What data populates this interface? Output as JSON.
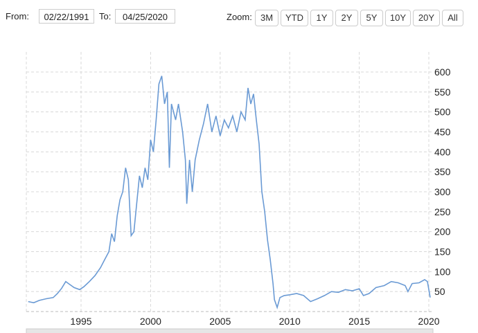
{
  "range": {
    "from_label": "From:",
    "from_value": "02/22/1991",
    "to_label": "To:",
    "to_value": "04/25/2020"
  },
  "zoom": {
    "label": "Zoom:",
    "buttons": [
      "3M",
      "YTD",
      "1Y",
      "2Y",
      "5Y",
      "10Y",
      "20Y",
      "All"
    ]
  },
  "colors": {
    "line": "#6a9ad4",
    "grid": "#d8d8d8"
  },
  "chart_data": {
    "type": "line",
    "title": "",
    "xlabel": "",
    "ylabel": "",
    "xlim": [
      1991.15,
      2020.3
    ],
    "ylim": [
      0,
      620
    ],
    "x_ticks": [
      "1995",
      "2000",
      "2005",
      "2010",
      "2015",
      "2020"
    ],
    "y_ticks": [
      "50",
      "100",
      "150",
      "200",
      "250",
      "300",
      "350",
      "400",
      "450",
      "500",
      "550",
      "600"
    ],
    "grid": true,
    "series": [
      {
        "name": "price",
        "points": [
          [
            1991.2,
            25
          ],
          [
            1991.6,
            22
          ],
          [
            1992,
            28
          ],
          [
            1992.5,
            32
          ],
          [
            1993,
            35
          ],
          [
            1993.3,
            45
          ],
          [
            1993.6,
            58
          ],
          [
            1993.9,
            75
          ],
          [
            1994.1,
            70
          ],
          [
            1994.5,
            60
          ],
          [
            1994.9,
            55
          ],
          [
            1995.2,
            62
          ],
          [
            1995.6,
            75
          ],
          [
            1996,
            90
          ],
          [
            1996.4,
            110
          ],
          [
            1996.7,
            130
          ],
          [
            1997,
            150
          ],
          [
            1997.2,
            195
          ],
          [
            1997.4,
            175
          ],
          [
            1997.6,
            240
          ],
          [
            1997.8,
            280
          ],
          [
            1998,
            300
          ],
          [
            1998.2,
            360
          ],
          [
            1998.4,
            330
          ],
          [
            1998.6,
            190
          ],
          [
            1998.8,
            200
          ],
          [
            1999,
            270
          ],
          [
            1999.2,
            340
          ],
          [
            1999.4,
            310
          ],
          [
            1999.6,
            360
          ],
          [
            1999.8,
            330
          ],
          [
            2000,
            430
          ],
          [
            2000.2,
            400
          ],
          [
            2000.4,
            480
          ],
          [
            2000.6,
            570
          ],
          [
            2000.8,
            590
          ],
          [
            2001,
            520
          ],
          [
            2001.2,
            550
          ],
          [
            2001.35,
            360
          ],
          [
            2001.5,
            520
          ],
          [
            2001.8,
            480
          ],
          [
            2002,
            520
          ],
          [
            2002.3,
            450
          ],
          [
            2002.5,
            380
          ],
          [
            2002.6,
            270
          ],
          [
            2002.8,
            380
          ],
          [
            2003,
            300
          ],
          [
            2003.2,
            380
          ],
          [
            2003.5,
            430
          ],
          [
            2003.8,
            470
          ],
          [
            2004.1,
            520
          ],
          [
            2004.4,
            450
          ],
          [
            2004.7,
            490
          ],
          [
            2005,
            440
          ],
          [
            2005.3,
            480
          ],
          [
            2005.6,
            460
          ],
          [
            2005.9,
            490
          ],
          [
            2006.2,
            450
          ],
          [
            2006.5,
            500
          ],
          [
            2006.8,
            480
          ],
          [
            2007,
            560
          ],
          [
            2007.2,
            520
          ],
          [
            2007.4,
            545
          ],
          [
            2007.6,
            480
          ],
          [
            2007.8,
            420
          ],
          [
            2008,
            300
          ],
          [
            2008.2,
            250
          ],
          [
            2008.4,
            180
          ],
          [
            2008.6,
            130
          ],
          [
            2008.8,
            70
          ],
          [
            2008.9,
            30
          ],
          [
            2009.1,
            10
          ],
          [
            2009.3,
            35
          ],
          [
            2009.6,
            40
          ],
          [
            2010,
            42
          ],
          [
            2010.5,
            45
          ],
          [
            2011,
            40
          ],
          [
            2011.5,
            25
          ],
          [
            2012,
            32
          ],
          [
            2012.5,
            40
          ],
          [
            2013,
            50
          ],
          [
            2013.5,
            48
          ],
          [
            2014,
            55
          ],
          [
            2014.5,
            52
          ],
          [
            2015,
            57
          ],
          [
            2015.3,
            40
          ],
          [
            2015.7,
            45
          ],
          [
            2016.2,
            60
          ],
          [
            2016.8,
            65
          ],
          [
            2017.3,
            75
          ],
          [
            2017.8,
            72
          ],
          [
            2018.3,
            65
          ],
          [
            2018.5,
            50
          ],
          [
            2018.8,
            70
          ],
          [
            2019.3,
            72
          ],
          [
            2019.7,
            80
          ],
          [
            2019.9,
            75
          ],
          [
            2020.1,
            35
          ]
        ]
      }
    ]
  }
}
